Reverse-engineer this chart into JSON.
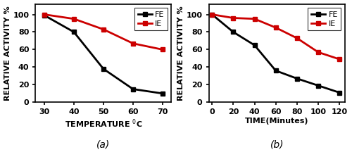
{
  "plot_a": {
    "x": [
      30,
      40,
      50,
      60,
      70
    ],
    "FE_y": [
      99,
      80,
      38,
      15,
      10
    ],
    "IE_y": [
      100,
      95,
      83,
      67,
      60
    ],
    "xlabel": "TEMPERATURE $^0$C",
    "ylabel": "RELATIVE ACTIVITY %",
    "label_a": "(a)",
    "xlim": [
      27,
      73
    ],
    "ylim": [
      0,
      112
    ],
    "xticks": [
      30,
      40,
      50,
      60,
      70
    ],
    "yticks": [
      0,
      20,
      40,
      60,
      80,
      100
    ]
  },
  "plot_b": {
    "x": [
      0,
      20,
      40,
      60,
      80,
      100,
      120
    ],
    "FE_y": [
      100,
      80,
      65,
      36,
      27,
      19,
      11
    ],
    "IE_y": [
      100,
      96,
      95,
      85,
      73,
      57,
      49
    ],
    "xlabel": "TIME(Minutes)",
    "ylabel": "RELATIVE ACTIVITY %",
    "label_b": "(b)",
    "xlim": [
      -3,
      125
    ],
    "ylim": [
      0,
      112
    ],
    "xticks": [
      0,
      20,
      40,
      60,
      80,
      100,
      120
    ],
    "yticks": [
      0,
      20,
      40,
      60,
      80,
      100
    ]
  },
  "fe_color": "#000000",
  "ie_color": "#cc0000",
  "fe_label": "FE",
  "ie_label": "IE",
  "marker": "s",
  "linewidth": 2.0,
  "markersize": 4.5,
  "font_size": 8,
  "label_font_size": 10,
  "tick_font_size": 8,
  "legend_font_size": 8
}
